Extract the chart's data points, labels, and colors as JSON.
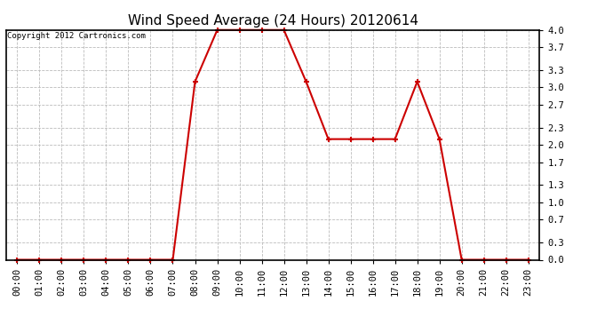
{
  "title": "Wind Speed Average (24 Hours) 20120614",
  "copyright_text": "Copyright 2012 Cartronics.com",
  "x_labels": [
    "00:00",
    "01:00",
    "02:00",
    "03:00",
    "04:00",
    "05:00",
    "06:00",
    "07:00",
    "08:00",
    "09:00",
    "10:00",
    "11:00",
    "12:00",
    "13:00",
    "14:00",
    "15:00",
    "16:00",
    "17:00",
    "18:00",
    "19:00",
    "20:00",
    "21:00",
    "22:00",
    "23:00"
  ],
  "y_values": [
    0.0,
    0.0,
    0.0,
    0.0,
    0.0,
    0.0,
    0.0,
    0.0,
    3.1,
    4.0,
    4.0,
    4.0,
    4.0,
    3.1,
    2.1,
    2.1,
    2.1,
    2.1,
    3.1,
    2.1,
    0.0,
    0.0,
    0.0,
    0.0
  ],
  "yticks": [
    0.0,
    0.3,
    0.7,
    1.0,
    1.3,
    1.7,
    2.0,
    2.3,
    2.7,
    3.0,
    3.3,
    3.7,
    4.0
  ],
  "ylim": [
    0.0,
    4.0
  ],
  "line_color": "#cc0000",
  "marker": "+",
  "marker_size": 5,
  "marker_linewidth": 1.5,
  "linewidth": 1.5,
  "background_color": "#ffffff",
  "plot_bg_color": "#ffffff",
  "grid_color": "#bbbbbb",
  "title_fontsize": 11,
  "tick_fontsize": 7.5,
  "copyright_fontsize": 6.5
}
